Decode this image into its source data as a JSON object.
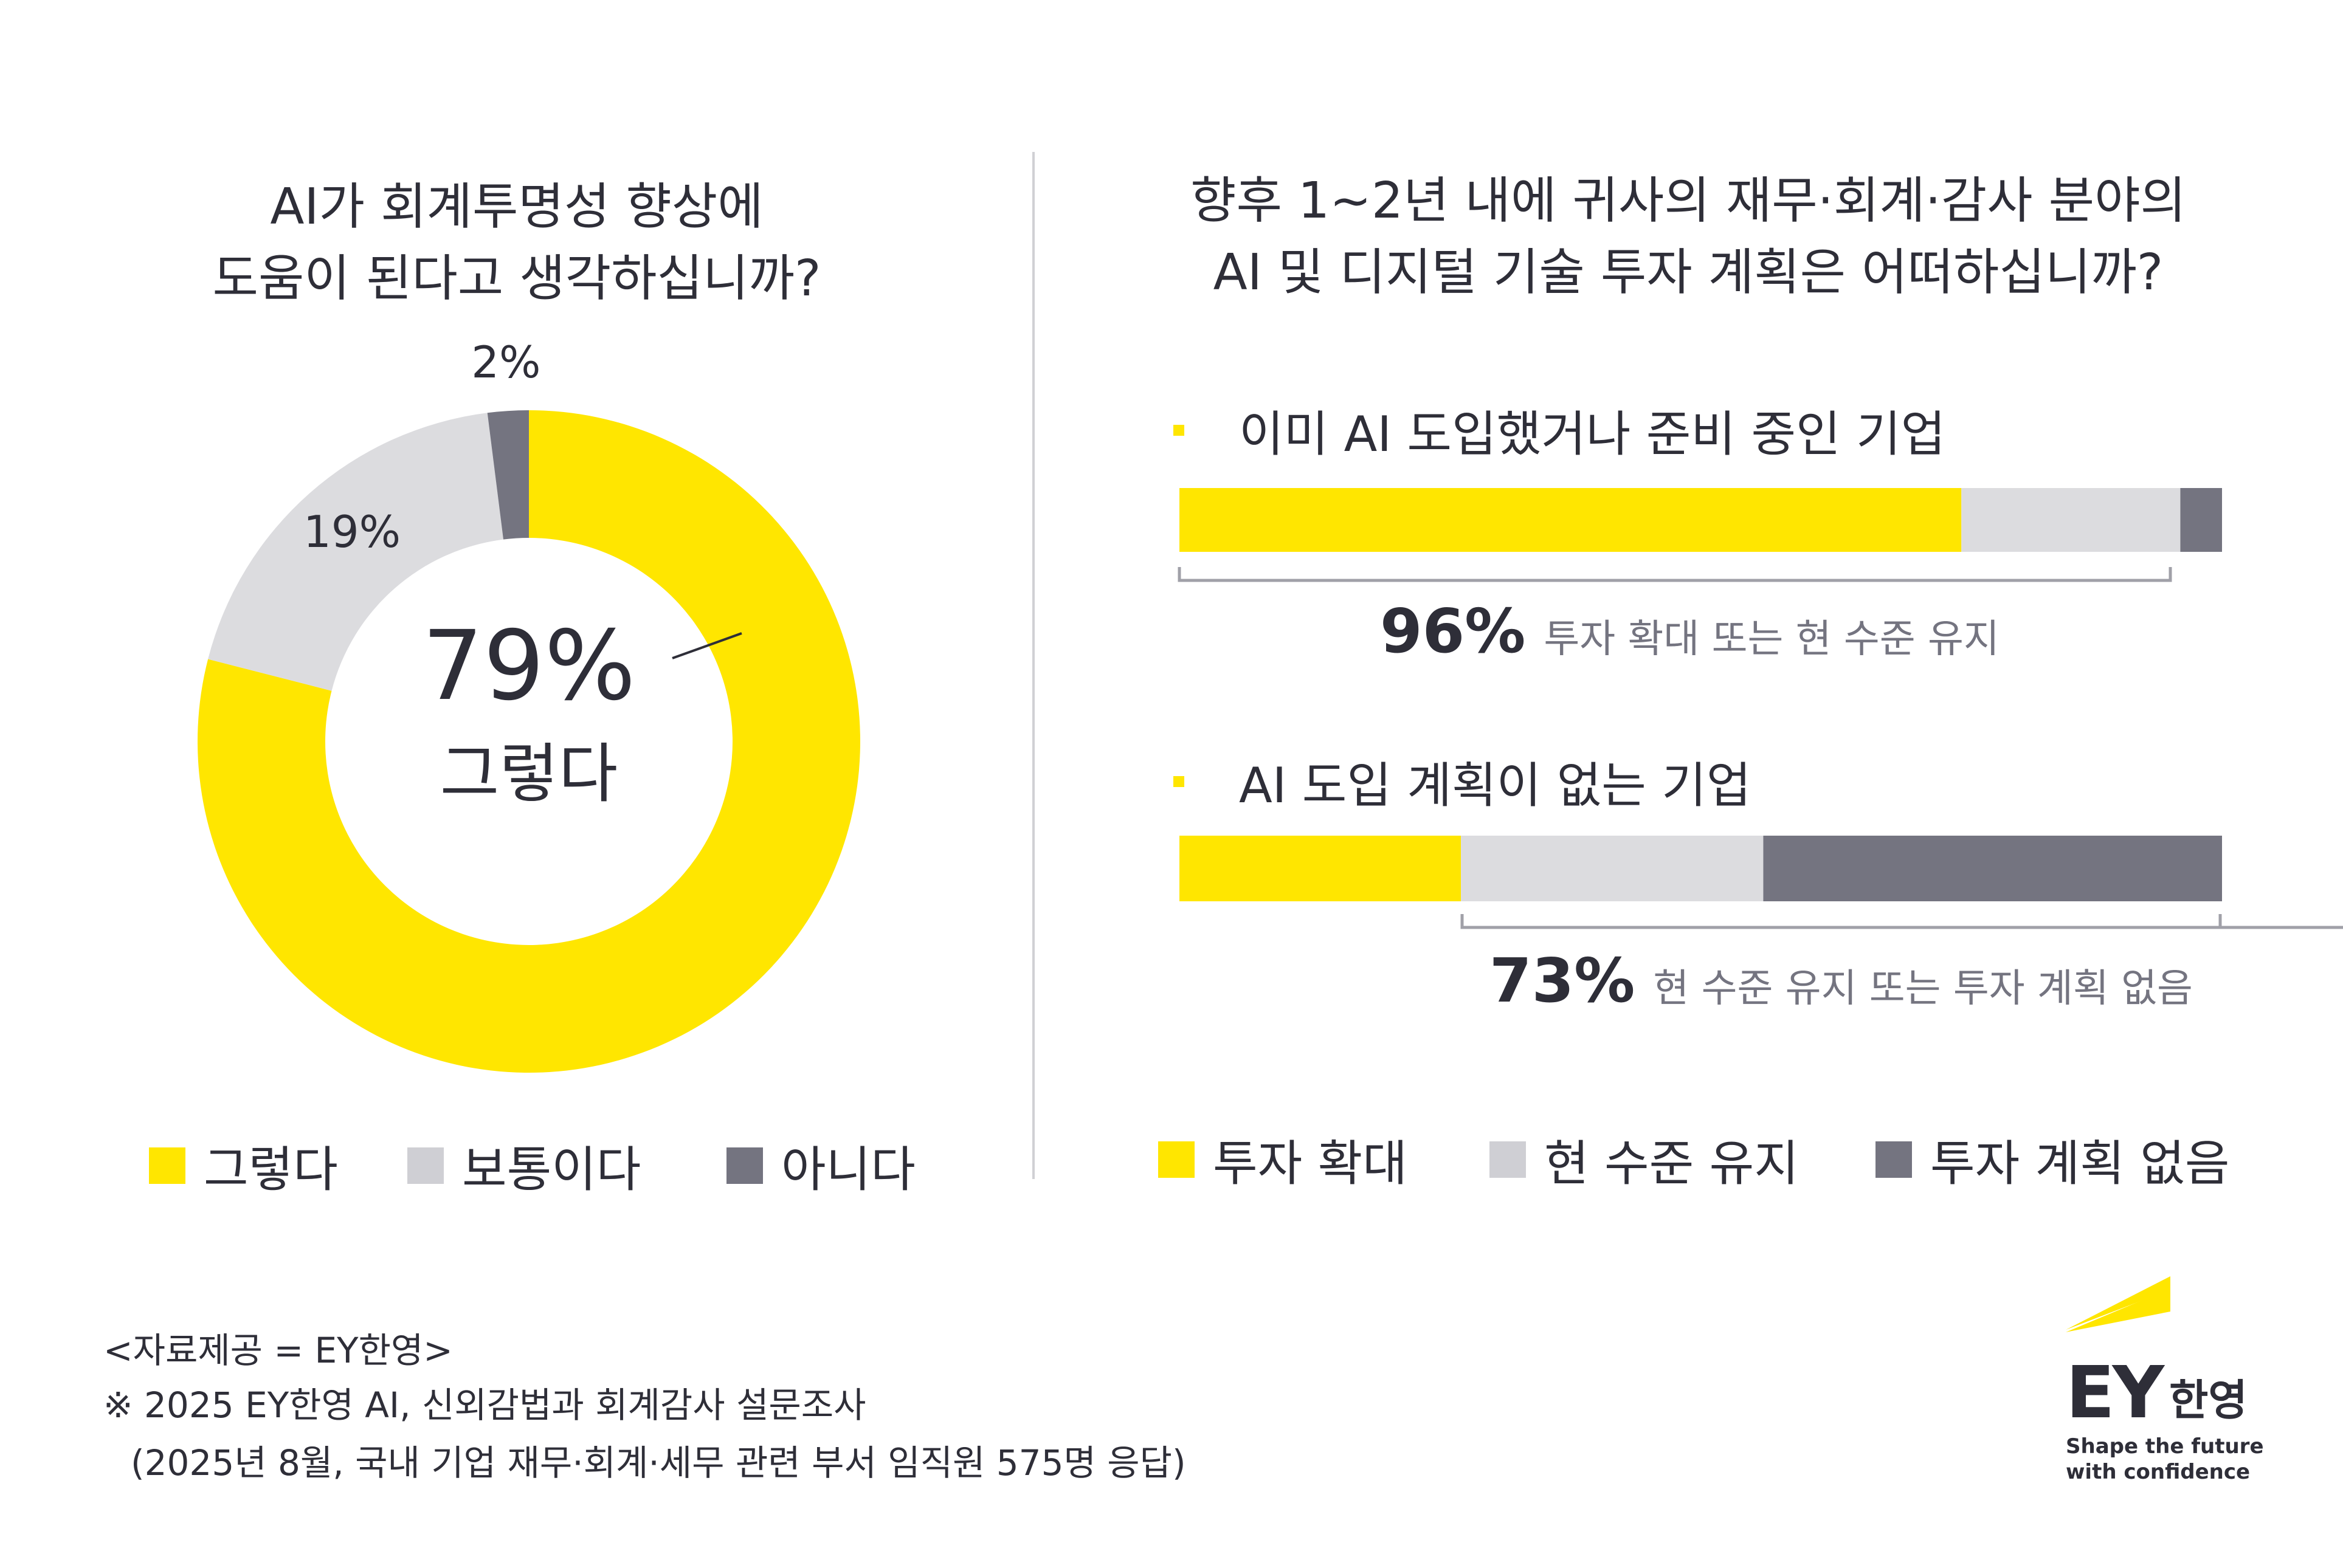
{
  "left_panel": {
    "title_line1": "AI가 회계투명성 향상에",
    "title_line2": "도움이 된다고 생각하십니까?",
    "center_value": "79%",
    "center_label": "그렇다",
    "legend": [
      "그렇다",
      "보통이다",
      "아니다"
    ]
  },
  "right_panel": {
    "title_line1": "향후 1~2년 내에 귀사의 재무·회계·감사 분야의",
    "title_line2": "AI 및 디지털 기술 투자 계획은 어떠하십니까?",
    "group1_label": "이미 AI 도입했거나 준비 중인 기업",
    "group1_summary_value": "96%",
    "group1_summary_text": "투자 확대 또는 현 수준 유지",
    "group2_label": "AI 도입 계획이 없는 기업",
    "group2_summary_value": "73%",
    "group2_summary_text": "현 수준 유지 또는 투자 계획 없음",
    "legend": [
      "투자 확대",
      "현 수준 유지",
      "투자 계획 없음"
    ]
  },
  "colors": {
    "yellow": "#ffe600",
    "light_gray": "#dcdcdf",
    "dark_gray": "#747480",
    "text": "#2e2e38"
  },
  "chart_data": [
    {
      "type": "pie",
      "title": "AI가 회계투명성 향상에 도움이 된다고 생각하십니까?",
      "categories": [
        "그렇다",
        "보통이다",
        "아니다"
      ],
      "values": [
        79,
        19,
        2
      ],
      "labels": [
        "79%",
        "19%",
        "2%"
      ],
      "donut": true,
      "legend_position": "bottom"
    },
    {
      "type": "bar",
      "orientation": "horizontal",
      "stacked": true,
      "title": "향후 1~2년 내에 귀사의 재무·회계·감사 분야의 AI 및 디지털 기술 투자 계획은 어떠하십니까?",
      "categories": [
        "이미 AI 도입했거나 준비 중인 기업",
        "AI 도입 계획이 없는 기업"
      ],
      "series": [
        {
          "name": "투자 확대",
          "values": [
            75,
            27
          ]
        },
        {
          "name": "현 수준 유지",
          "values": [
            21,
            29
          ]
        },
        {
          "name": "투자 계획 없음",
          "values": [
            4,
            44
          ]
        }
      ],
      "legend_position": "bottom"
    }
  ],
  "footer": {
    "line1": "<자료제공 = EY한영>",
    "line2": "※ 2025 EY한영 AI, 신외감법과 회계감사 설문조사",
    "line3": "(2025년 8월, 국내 기업 재무·회계·세무 관련 부서 임직원 575명 응답)"
  },
  "logo": {
    "mark": "EY",
    "korean": "한영",
    "tagline_line1": "Shape the future",
    "tagline_line2": "with confidence"
  }
}
